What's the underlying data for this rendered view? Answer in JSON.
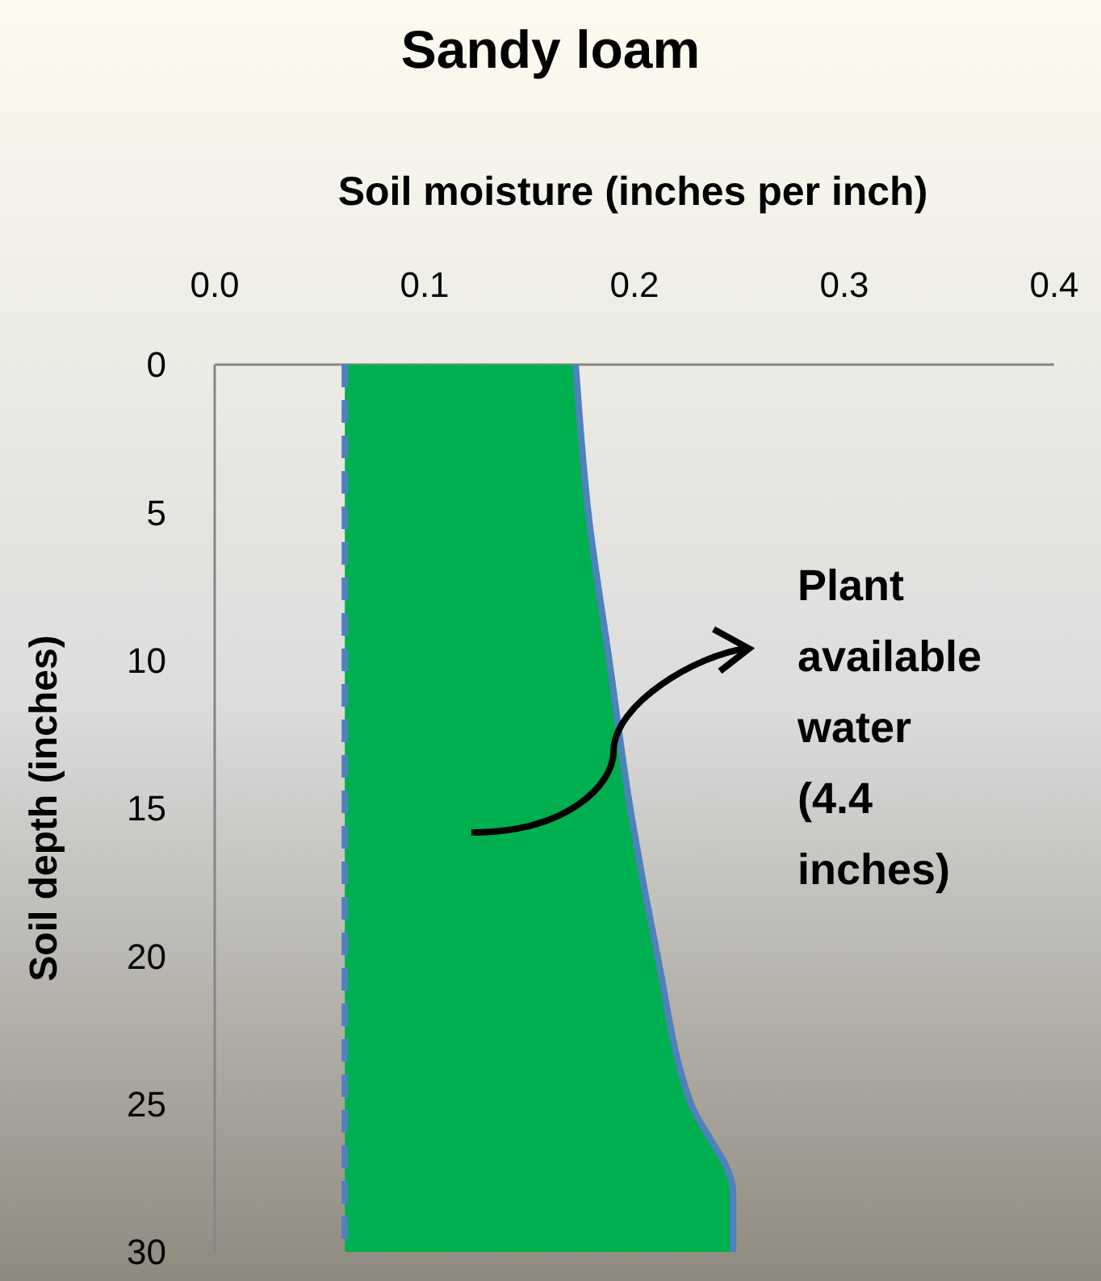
{
  "chart_data": {
    "type": "line",
    "title": "Sandy loam",
    "xlabel": "Soil moisture (inches per inch)",
    "ylabel": "Soil depth (inches)",
    "series": [
      {
        "color": "#4f81bd",
        "line_style": "dashed",
        "x": [
          0.062,
          0.062
        ],
        "values": [
          0,
          30
        ]
      },
      {
        "type": "area",
        "color": "#00b050",
        "x": [
          0.062,
          0.172,
          0.178,
          0.188,
          0.198,
          0.211,
          0.227,
          0.247,
          0.247,
          0.062
        ],
        "values": [
          0,
          0,
          5,
          10,
          15,
          20,
          25,
          28,
          30,
          30
        ]
      }
    ],
    "xlim": [
      0,
      0.4
    ],
    "xticks": [
      {
        "value": 0,
        "label": "0.0"
      },
      0.1,
      0.2,
      0.3,
      0.4
    ],
    "ylim": [
      30,
      0
    ],
    "yticks": [
      0,
      5,
      10,
      15,
      20,
      25,
      30
    ],
    "annotations": [
      "Plant available water (4.4 inches)"
    ]
  }
}
